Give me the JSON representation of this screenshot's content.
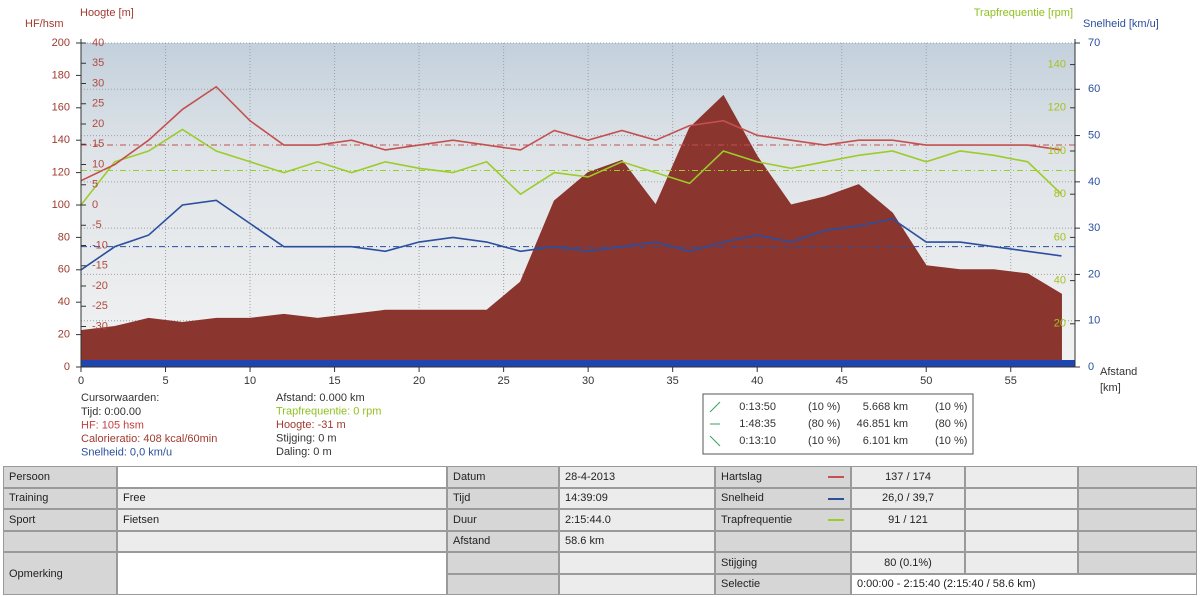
{
  "chart_data": {
    "type": "line",
    "x": [
      0,
      2,
      4,
      6,
      8,
      10,
      12,
      14,
      16,
      18,
      20,
      22,
      24,
      26,
      28,
      30,
      32,
      34,
      36,
      38,
      40,
      42,
      44,
      46,
      48,
      50,
      52,
      54,
      56,
      58
    ],
    "xlim": [
      0,
      58.8
    ],
    "xticks": [
      0,
      5,
      10,
      15,
      20,
      25,
      30,
      35,
      40,
      45,
      50,
      55
    ],
    "xlabel": "Afstand",
    "xunit": "[km]",
    "ylim": [
      0,
      200
    ],
    "yticks": [
      0,
      20,
      40,
      60,
      80,
      100,
      120,
      140,
      160,
      180,
      200
    ],
    "ylabel": "HF/hsm",
    "y2lim": [
      0,
      70
    ],
    "y2ticks": [
      0,
      10,
      20,
      30,
      40,
      50,
      60,
      70
    ],
    "y2label": "Snelheid [km/u]",
    "y3lim": [
      -40,
      40
    ],
    "y3ticks": [
      -30,
      -25,
      -20,
      -15,
      -10,
      -5,
      0,
      5,
      10,
      15,
      20,
      25,
      30,
      35,
      40
    ],
    "y3label": "Hoogte [m]",
    "y4lim": [
      0,
      150
    ],
    "y4ticks": [
      20,
      40,
      60,
      80,
      100,
      120,
      140
    ],
    "y4label": "Trapfrequentie [rpm]",
    "grid": true,
    "series": [
      {
        "type": "area",
        "axis": "y3",
        "color": "#8b352f",
        "values": [
          -31,
          -30,
          -28,
          -29,
          -28,
          -28,
          -27,
          -28,
          -27,
          -26,
          -26,
          -26,
          -26,
          -19,
          1,
          8,
          11,
          0,
          19,
          27,
          12,
          0,
          2,
          5,
          -2,
          -15,
          -16,
          -16,
          -17,
          -22
        ]
      },
      {
        "type": "line",
        "axis": "y4",
        "color": "#9ccc2a",
        "values": [
          75,
          95,
          100,
          110,
          100,
          95,
          90,
          95,
          90,
          95,
          92,
          90,
          95,
          80,
          90,
          88,
          95,
          90,
          85,
          100,
          95,
          92,
          95,
          98,
          100,
          95,
          100,
          98,
          95,
          80
        ]
      },
      {
        "type": "line",
        "axis": "y",
        "color": "#c45050",
        "values": [
          115,
          125,
          140,
          159,
          173,
          152,
          137,
          137,
          140,
          134,
          137,
          140,
          137,
          134,
          146,
          140,
          146,
          140,
          149,
          152,
          143,
          140,
          137,
          140,
          140,
          137,
          137,
          137,
          137,
          134
        ]
      },
      {
        "type": "line",
        "axis": "y2",
        "color": "#2a4f9e",
        "values": [
          21,
          26,
          28.5,
          35,
          36,
          31,
          26,
          26,
          26,
          25,
          27,
          28,
          27,
          25,
          26,
          25,
          26,
          27,
          25,
          27,
          28.5,
          27,
          29.5,
          30.5,
          32,
          27,
          27,
          26,
          25,
          24
        ]
      }
    ],
    "reference_lines": [
      {
        "axis": "y",
        "value": 137,
        "color": "#c45050"
      },
      {
        "axis": "y4",
        "value": 91,
        "color": "#9ccc2a"
      },
      {
        "axis": "y2",
        "value": 26,
        "color": "#2a4f9e"
      }
    ]
  },
  "cursor": {
    "title": "Cursorwaarden:",
    "left": [
      {
        "text": "Tijd: 0:00.00",
        "color": "#333333"
      },
      {
        "text": "HF: 105 hsm",
        "color": "#c04040"
      },
      {
        "text": "Calorieratio: 408 kcal/60min",
        "color": "#a03a30"
      },
      {
        "text": "Snelheid: 0,0 km/u",
        "color": "#2a4f9e"
      }
    ],
    "right": [
      {
        "text": "Afstand: 0.000 km",
        "color": "#333333"
      },
      {
        "text": "Trapfrequentie: 0 rpm",
        "color": "#8fc020"
      },
      {
        "text": "Hoogte: -31 m",
        "color": "#a03a30"
      },
      {
        "text": "Stijging: 0 m",
        "color": "#333333"
      },
      {
        "text": "Daling: 0 m",
        "color": "#333333"
      }
    ]
  },
  "zones": [
    {
      "time": "0:13:50",
      "time_pct": "(10 %)",
      "distance": "5.668 km",
      "distance_pct": "(10 %)"
    },
    {
      "time": "1:48:35",
      "time_pct": "(80 %)",
      "distance": "46.851 km",
      "distance_pct": "(80 %)"
    },
    {
      "time": "0:13:10",
      "time_pct": "(10 %)",
      "distance": "6.101 km",
      "distance_pct": "(10 %)"
    }
  ],
  "table": {
    "rows": [
      [
        "Persoon",
        null,
        "Datum",
        "28-4-2013",
        "Hartslag",
        "137 / 174",
        null,
        null
      ],
      [
        "Training",
        "Free",
        "Tijd",
        "14:39:09",
        "Snelheid",
        "26,0 / 39,7",
        null,
        null
      ],
      [
        "Sport",
        "Fietsen",
        "Duur",
        "2:15:44.0",
        "Trapfrequentie",
        "91 / 121",
        null,
        null
      ],
      [
        null,
        null,
        "Afstand",
        "58.6 km",
        null,
        null,
        null,
        null
      ],
      [
        "Opmerking",
        null,
        null,
        null,
        "Stijging",
        "80 (0.1%)",
        null,
        null
      ],
      [
        null,
        null,
        null,
        null,
        "Selectie",
        "0:00:00 - 2:15:40 (2:15:40 / 58.6 km)",
        null,
        null
      ]
    ]
  }
}
